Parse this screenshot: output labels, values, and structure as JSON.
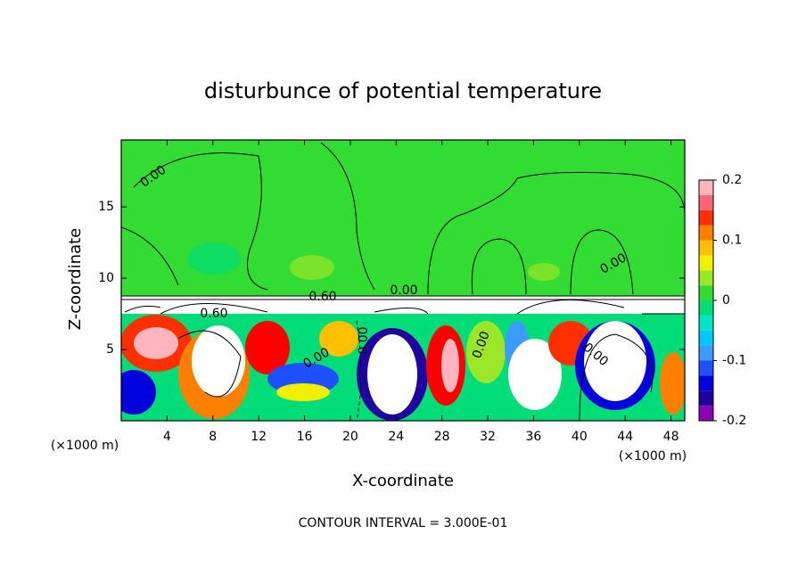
{
  "chart_data": {
    "type": "contour",
    "title": "disturbunce of potential temperature",
    "x_label": "X-coordinate",
    "y_label": "Z-coordinate",
    "x_unit_label": "(×1000 m)",
    "footer": "CONTOUR INTERVAL = 3.000E-01",
    "xlim": [
      0,
      49.2
    ],
    "xticks": [
      4,
      8,
      12,
      16,
      20,
      24,
      28,
      32,
      36,
      40,
      44,
      48
    ],
    "ylim": [
      0,
      19.7
    ],
    "yticks": [
      5,
      10,
      15
    ],
    "colorbar": {
      "lim": [
        -0.2,
        0.2
      ],
      "ticks": [
        -0.2,
        -0.1,
        0,
        0.1,
        0.2
      ],
      "colors": [
        "#8a00b4",
        "#2000a0",
        "#0000dc",
        "#1e50ff",
        "#3c9bff",
        "#00c8ff",
        "#00e6c8",
        "#00dc78",
        "#32dc32",
        "#9be628",
        "#f0f000",
        "#ffc000",
        "#ff8000",
        "#ff3000",
        "#ff6478",
        "#ffb4be"
      ]
    },
    "contour_labels": [
      "0.00",
      "0.00",
      "0.60",
      "0.00",
      "0.60",
      "0.00",
      "0.00",
      "0.00",
      "0.00"
    ]
  }
}
